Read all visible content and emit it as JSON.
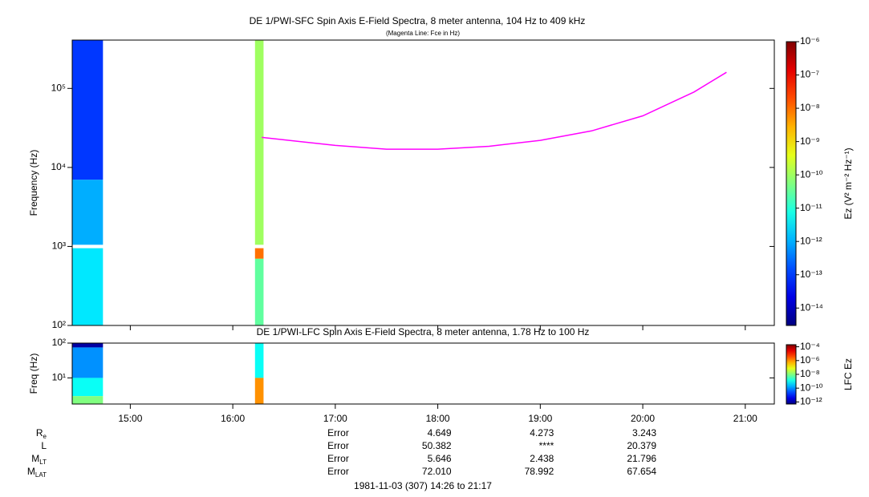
{
  "chart_data": [
    {
      "type": "spectrogram",
      "title": "DE 1/PWI-SFC  Spin Axis E-Field Spectra, 8 meter antenna, 104 Hz to 409 kHz",
      "subtitle": "(Magenta Line: Fce in Hz)",
      "ylabel": "Frequency (Hz)",
      "log_y": true,
      "xlim": [
        "14:26",
        "21:17"
      ],
      "xticks": [
        "15:00",
        "16:00",
        "17:00",
        "18:00",
        "19:00",
        "20:00",
        "21:00"
      ],
      "ylim": [
        100,
        409000
      ],
      "yticks": [
        {
          "value": 100,
          "label": "10²"
        },
        {
          "value": 1000,
          "label": "10³"
        },
        {
          "value": 10000,
          "label": "10⁴"
        },
        {
          "value": 100000,
          "label": "10⁵"
        }
      ],
      "zlabel": "Ez (V² m⁻² Hz⁻¹)",
      "zlim": [
        3e-15,
        1e-06
      ],
      "zticks": [
        {
          "value": 1e-06,
          "label": "10⁻⁶"
        },
        {
          "value": 1e-07,
          "label": "10⁻⁷"
        },
        {
          "value": 1e-08,
          "label": "10⁻⁸"
        },
        {
          "value": 1e-09,
          "label": "10⁻⁹"
        },
        {
          "value": 1e-10,
          "label": "10⁻¹⁰"
        },
        {
          "value": 1e-11,
          "label": "10⁻¹¹"
        },
        {
          "value": 1e-12,
          "label": "10⁻¹²"
        },
        {
          "value": 1e-13,
          "label": "10⁻¹³"
        },
        {
          "value": 1e-14,
          "label": "10⁻¹⁴"
        }
      ],
      "blocks": [
        {
          "x": [
            "14:26",
            "14:44"
          ],
          "y": [
            100,
            950
          ],
          "z": 3e-12
        },
        {
          "x": [
            "14:26",
            "14:44"
          ],
          "y": [
            1050,
            7000
          ],
          "z": 1e-12
        },
        {
          "x": [
            "14:26",
            "14:44"
          ],
          "y": [
            7000,
            409000
          ],
          "z": 1e-13
        },
        {
          "x": [
            "16:13",
            "16:18"
          ],
          "y": [
            100,
            700
          ],
          "z": 3e-11
        },
        {
          "x": [
            "16:13",
            "16:18"
          ],
          "y": [
            700,
            950
          ],
          "z": 1e-08
        },
        {
          "x": [
            "16:13",
            "16:18"
          ],
          "y": [
            1050,
            409000
          ],
          "z": 1e-10
        }
      ],
      "line": {
        "color": "#ff00ff",
        "x": [
          "16:17",
          "17:00",
          "17:30",
          "18:00",
          "18:30",
          "19:00",
          "19:30",
          "20:00",
          "20:30",
          "20:49"
        ],
        "values": [
          24000,
          19000,
          17000,
          17000,
          18500,
          22000,
          29000,
          45000,
          90000,
          160000
        ]
      }
    },
    {
      "type": "spectrogram",
      "title": "DE 1/PWI-LFC  Spin Axis E-Field Spectra, 8 meter antenna, 1.78 Hz to 100 Hz",
      "ylabel": "Freq (Hz)",
      "log_y": true,
      "xlim": [
        "14:26",
        "21:17"
      ],
      "xticks": [
        "15:00",
        "16:00",
        "17:00",
        "18:00",
        "19:00",
        "20:00",
        "21:00"
      ],
      "ylim": [
        1.78,
        100
      ],
      "yticks": [
        {
          "value": 10,
          "label": "10¹"
        },
        {
          "value": 100,
          "label": "10²"
        }
      ],
      "zlabel": "LFC Ez",
      "zlim": [
        5e-13,
        0.0002
      ],
      "zticks": [
        {
          "value": 0.0001,
          "label": "10⁻⁴"
        },
        {
          "value": 1e-06,
          "label": "10⁻⁶"
        },
        {
          "value": 1e-08,
          "label": "10⁻⁸"
        },
        {
          "value": 1e-10,
          "label": "10⁻¹⁰"
        },
        {
          "value": 1e-12,
          "label": "10⁻¹²"
        }
      ],
      "blocks": [
        {
          "x": [
            "14:26",
            "14:44"
          ],
          "y": [
            75,
            100
          ],
          "z": 1e-12
        },
        {
          "x": [
            "14:26",
            "14:44"
          ],
          "y": [
            10,
            75
          ],
          "z": 1e-10
        },
        {
          "x": [
            "14:26",
            "14:44"
          ],
          "y": [
            3,
            10
          ],
          "z": 1e-09
        },
        {
          "x": [
            "14:26",
            "14:44"
          ],
          "y": [
            1.78,
            3
          ],
          "z": 1e-08
        },
        {
          "x": [
            "16:13",
            "16:18"
          ],
          "y": [
            10,
            100
          ],
          "z": 1e-09
        },
        {
          "x": [
            "16:13",
            "16:18"
          ],
          "y": [
            1.78,
            10
          ],
          "z": 1e-06
        }
      ]
    }
  ],
  "ephemeris": {
    "times": [
      "17:00",
      "18:00",
      "19:00",
      "20:00"
    ],
    "rows": [
      {
        "label": {
          "main": "R",
          "sub": "e"
        },
        "values": [
          "Error",
          4.649,
          4.273,
          3.243
        ]
      },
      {
        "label": {
          "main": "L",
          "sub": ""
        },
        "values": [
          "Error",
          50.382,
          "****",
          20.379
        ]
      },
      {
        "label": {
          "main": "M",
          "sub": "LT"
        },
        "values": [
          "Error",
          5.646,
          2.438,
          21.796
        ]
      },
      {
        "label": {
          "main": "M",
          "sub": "LAT"
        },
        "values": [
          "Error",
          "72.010",
          78.992,
          67.654
        ]
      }
    ]
  },
  "footer": "1981-11-03 (307) 14:26 to 21:17"
}
